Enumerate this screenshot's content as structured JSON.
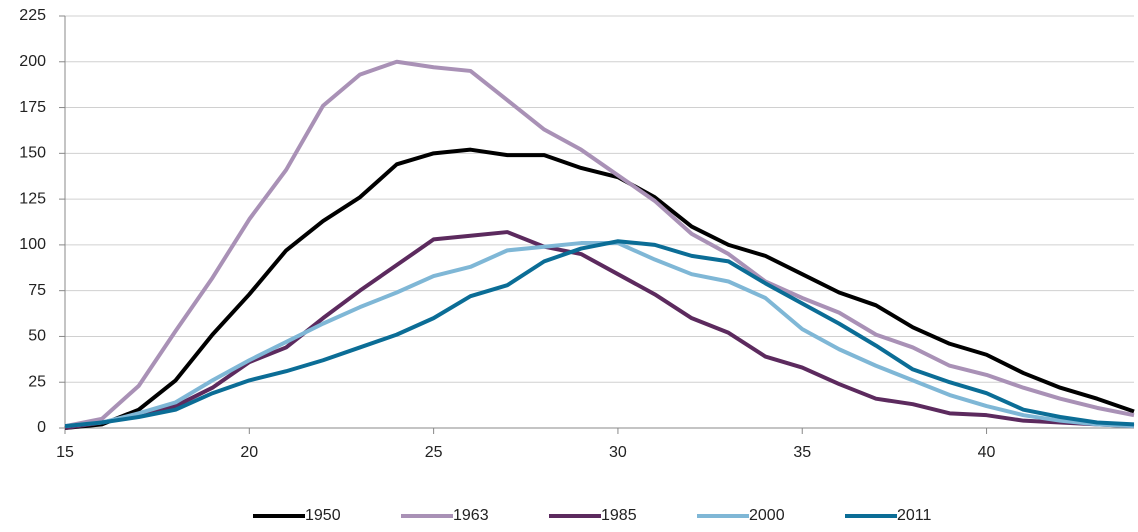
{
  "chart_data": {
    "type": "line",
    "x": [
      15,
      16,
      17,
      18,
      19,
      20,
      21,
      22,
      23,
      24,
      25,
      26,
      27,
      28,
      29,
      30,
      31,
      32,
      33,
      34,
      35,
      36,
      37,
      38,
      39,
      40,
      41,
      42,
      43,
      44
    ],
    "series": [
      {
        "name": "1950",
        "color": "#000000",
        "values": [
          0,
          2,
          10,
          26,
          51,
          73,
          97,
          113,
          126,
          144,
          150,
          152,
          149,
          149,
          142,
          137,
          126,
          110,
          100,
          94,
          84,
          74,
          67,
          55,
          46,
          40,
          30,
          22,
          16,
          9
        ]
      },
      {
        "name": "1963",
        "color": "#a991b6",
        "values": [
          1,
          5,
          23,
          53,
          82,
          114,
          141,
          176,
          193,
          200,
          197,
          195,
          179,
          163,
          152,
          138,
          124,
          106,
          95,
          80,
          71,
          63,
          51,
          44,
          34,
          29,
          22,
          16,
          11,
          7
        ]
      },
      {
        "name": "1985",
        "color": "#5c2a5e",
        "values": [
          0,
          3,
          7,
          12,
          22,
          36,
          44,
          60,
          75,
          89,
          103,
          105,
          107,
          99,
          95,
          84,
          73,
          60,
          52,
          39,
          33,
          24,
          16,
          13,
          8,
          7,
          4,
          3,
          2,
          1
        ]
      },
      {
        "name": "2000",
        "color": "#7fb7d6",
        "values": [
          1,
          3,
          8,
          14,
          26,
          37,
          47,
          57,
          66,
          74,
          83,
          88,
          97,
          99,
          101,
          101,
          92,
          84,
          80,
          71,
          54,
          43,
          34,
          26,
          18,
          12,
          7,
          4,
          2,
          1
        ]
      },
      {
        "name": "2011",
        "color": "#0b6d96",
        "values": [
          1,
          3,
          6,
          10,
          19,
          26,
          31,
          37,
          44,
          51,
          60,
          72,
          78,
          91,
          98,
          102,
          100,
          94,
          91,
          79,
          68,
          57,
          45,
          32,
          25,
          19,
          10,
          6,
          3,
          2
        ]
      }
    ],
    "xlim": [
      15,
      44
    ],
    "xticks": [
      15,
      20,
      25,
      30,
      35,
      40
    ],
    "ylim": [
      0,
      225
    ],
    "yticks": [
      0,
      25,
      50,
      75,
      100,
      125,
      150,
      175,
      200,
      225
    ],
    "grid": true,
    "legend": "bottom"
  }
}
